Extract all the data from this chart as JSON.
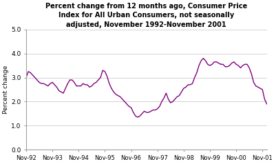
{
  "title": "Percent change from 12 months ago, Consumer Price\nIndex for All Urban Consumers, not seasonally\nadjusted, November 1992-November 2001",
  "ylabel": "Percent change",
  "line_color": "#800080",
  "bg_color": "#ffffff",
  "ylim": [
    0.0,
    5.0
  ],
  "yticks": [
    0.0,
    1.0,
    2.0,
    3.0,
    4.0,
    5.0
  ],
  "xtick_labels": [
    "Nov-92",
    "Nov-93",
    "Nov-94",
    "Nov-95",
    "Nov-96",
    "Nov-97",
    "Nov-98",
    "Nov-99",
    "Nov-00",
    "Nov-01"
  ],
  "values": [
    3.0,
    3.25,
    3.2,
    3.1,
    3.0,
    2.9,
    2.8,
    2.75,
    2.75,
    2.7,
    2.65,
    2.75,
    2.8,
    2.7,
    2.6,
    2.45,
    2.4,
    2.35,
    2.55,
    2.75,
    2.9,
    2.9,
    2.8,
    2.65,
    2.65,
    2.65,
    2.75,
    2.7,
    2.7,
    2.6,
    2.65,
    2.75,
    2.8,
    2.9,
    3.0,
    3.3,
    3.25,
    3.05,
    2.75,
    2.55,
    2.4,
    2.3,
    2.25,
    2.2,
    2.1,
    2.0,
    1.9,
    1.8,
    1.75,
    1.55,
    1.4,
    1.35,
    1.4,
    1.5,
    1.6,
    1.55,
    1.55,
    1.6,
    1.65,
    1.65,
    1.7,
    1.8,
    2.0,
    2.15,
    2.35,
    2.1,
    1.95,
    2.0,
    2.1,
    2.2,
    2.25,
    2.4,
    2.55,
    2.6,
    2.7,
    2.7,
    2.75,
    3.0,
    3.2,
    3.5,
    3.7,
    3.8,
    3.7,
    3.55,
    3.5,
    3.55,
    3.65,
    3.65,
    3.6,
    3.55,
    3.55,
    3.45,
    3.45,
    3.5,
    3.6,
    3.65,
    3.55,
    3.5,
    3.4,
    3.5,
    3.55,
    3.55,
    3.4,
    3.15,
    2.8,
    2.65,
    2.6,
    2.55,
    2.5,
    2.1,
    1.9
  ]
}
